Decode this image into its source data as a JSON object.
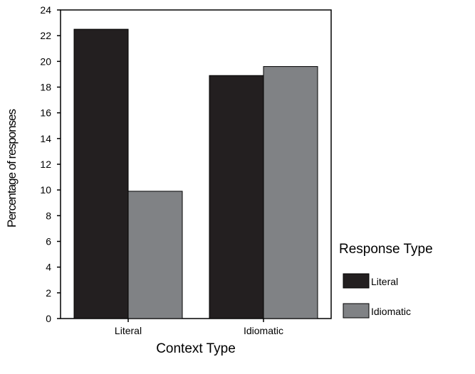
{
  "chart_data": {
    "type": "bar",
    "title": "",
    "xlabel": "Context Type",
    "ylabel": "Percentage of responses",
    "categories": [
      "Literal",
      "Idiomatic"
    ],
    "series": [
      {
        "name": "Literal",
        "values": [
          22.5,
          18.9
        ]
      },
      {
        "name": "Idiomatic",
        "values": [
          9.9,
          19.6
        ]
      }
    ],
    "ylim": [
      0,
      24
    ],
    "yticks": [
      "0",
      "2",
      "4",
      "6",
      "8",
      "10",
      "12",
      "14",
      "16",
      "18",
      "20",
      "22",
      "24"
    ],
    "grid": false,
    "legend_title": "Response Type",
    "legend_position": "right"
  },
  "colors": {
    "series_literal": "#231f20",
    "series_idiomatic": "#808285"
  }
}
